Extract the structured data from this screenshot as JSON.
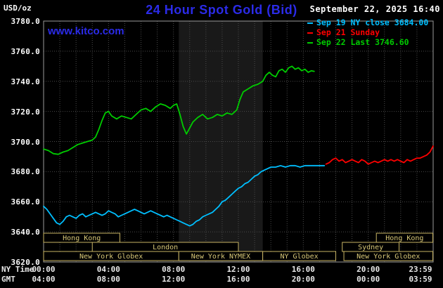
{
  "header": {
    "units": "USD/oz",
    "title": "24 Hour Spot Gold (Bid)",
    "datetime": "September 22, 2025 16:40",
    "watermark": "www.kitco.com"
  },
  "colors": {
    "background": "#000000",
    "title_blue": "#2B2BE8",
    "watermark_blue": "#2B2BE8",
    "axis_text": "#FFFFFF",
    "grid": "#4A4A4A",
    "border": "#9A9A9A",
    "session_box_border": "#C8B464",
    "session_box_text": "#D8C878",
    "session_shade": "#191919",
    "friday_cyan": "#00BFFF",
    "sunday_red": "#FF0000",
    "today_green": "#00CC00"
  },
  "legend": [
    {
      "label": "Sep 19 NY close 3684.00",
      "color": "#00BFFF"
    },
    {
      "label": "Sep 21 Sunday",
      "color": "#FF0000"
    },
    {
      "label": "Sep 22 Last 3746.60",
      "color": "#00CC00"
    }
  ],
  "axes": {
    "y_ticks": [
      "3780.0",
      "3760.0",
      "3740.0",
      "3720.0",
      "3700.0",
      "3680.0",
      "3660.0",
      "3640.0",
      "3620.0"
    ],
    "x_label_ny": "NY Time",
    "x_label_gmt": "GMT",
    "ny_ticks": [
      "00:00",
      "04:00",
      "08:00",
      "12:00",
      "16:00",
      "20:00",
      "23:59"
    ],
    "gmt_ticks": [
      "04:00",
      "08:00",
      "12:00",
      "16:00",
      "20:00",
      "00:00",
      "03:59"
    ]
  },
  "sessions": [
    {
      "label": "Hong Kong",
      "row": 0,
      "start": 0,
      "end": 4.7
    },
    {
      "label": "Hong Kong",
      "row": 0,
      "start": 20.5,
      "end": 23.98
    },
    {
      "label": "London",
      "row": 1,
      "start": 3.0,
      "end": 12.0
    },
    {
      "label": "Sydney",
      "row": 1,
      "start": 18.4,
      "end": 21.9
    },
    {
      "label": "New York Globex",
      "row": 2,
      "start": 0,
      "end": 8.33
    },
    {
      "label": "New York NYMEX",
      "row": 2,
      "start": 8.33,
      "end": 13.5
    },
    {
      "label": "NY Globex",
      "row": 2,
      "start": 13.5,
      "end": 18.0
    },
    {
      "label": "New York Globex",
      "row": 2,
      "start": 18.5,
      "end": 23.98
    }
  ],
  "chart_data": {
    "type": "line",
    "title": "24 Hour Spot Gold (Bid)",
    "ylabel": "USD/oz",
    "xlabel": "NY Time (hours, 00:00-23:59)",
    "xlim": [
      0,
      24
    ],
    "ylim": [
      3620,
      3780
    ],
    "grid": true,
    "legend_position": "top-right",
    "shaded_region": {
      "label": "New York NYMEX floor session",
      "start": 8.33,
      "end": 13.5
    },
    "series": [
      {
        "name": "Sep 19 NY close 3684.00",
        "color": "#00BFFF",
        "points": [
          [
            0,
            3657
          ],
          [
            0.2,
            3655
          ],
          [
            0.4,
            3652
          ],
          [
            0.6,
            3649
          ],
          [
            0.8,
            3646
          ],
          [
            1,
            3645
          ],
          [
            1.2,
            3647
          ],
          [
            1.4,
            3650
          ],
          [
            1.6,
            3651
          ],
          [
            1.8,
            3650
          ],
          [
            2,
            3649
          ],
          [
            2.2,
            3651
          ],
          [
            2.4,
            3652
          ],
          [
            2.6,
            3650
          ],
          [
            2.8,
            3651
          ],
          [
            3,
            3652
          ],
          [
            3.2,
            3653
          ],
          [
            3.4,
            3652
          ],
          [
            3.6,
            3651
          ],
          [
            3.8,
            3652
          ],
          [
            4,
            3654
          ],
          [
            4.2,
            3653
          ],
          [
            4.4,
            3652
          ],
          [
            4.6,
            3650
          ],
          [
            4.8,
            3651
          ],
          [
            5,
            3652
          ],
          [
            5.2,
            3653
          ],
          [
            5.4,
            3654
          ],
          [
            5.6,
            3655
          ],
          [
            5.8,
            3654
          ],
          [
            6,
            3653
          ],
          [
            6.2,
            3652
          ],
          [
            6.4,
            3653
          ],
          [
            6.6,
            3654
          ],
          [
            6.8,
            3653
          ],
          [
            7,
            3652
          ],
          [
            7.2,
            3651
          ],
          [
            7.4,
            3650
          ],
          [
            7.6,
            3651
          ],
          [
            7.8,
            3650
          ],
          [
            8,
            3649
          ],
          [
            8.2,
            3648
          ],
          [
            8.4,
            3647
          ],
          [
            8.6,
            3646
          ],
          [
            8.8,
            3645
          ],
          [
            9,
            3644
          ],
          [
            9.2,
            3645
          ],
          [
            9.4,
            3647
          ],
          [
            9.6,
            3648
          ],
          [
            9.8,
            3650
          ],
          [
            10,
            3651
          ],
          [
            10.2,
            3652
          ],
          [
            10.4,
            3653
          ],
          [
            10.6,
            3655
          ],
          [
            10.8,
            3657
          ],
          [
            11,
            3660
          ],
          [
            11.2,
            3661
          ],
          [
            11.4,
            3663
          ],
          [
            11.6,
            3665
          ],
          [
            11.8,
            3667
          ],
          [
            12,
            3669
          ],
          [
            12.2,
            3670
          ],
          [
            12.4,
            3672
          ],
          [
            12.6,
            3673
          ],
          [
            12.8,
            3675
          ],
          [
            13,
            3677
          ],
          [
            13.2,
            3678
          ],
          [
            13.4,
            3680
          ],
          [
            13.6,
            3681
          ],
          [
            13.8,
            3682
          ],
          [
            14,
            3683
          ],
          [
            14.3,
            3683
          ],
          [
            14.6,
            3684
          ],
          [
            14.9,
            3683
          ],
          [
            15.2,
            3684
          ],
          [
            15.5,
            3684
          ],
          [
            15.8,
            3683
          ],
          [
            16.1,
            3684
          ],
          [
            16.4,
            3684
          ],
          [
            16.7,
            3684
          ],
          [
            17,
            3684
          ],
          [
            17.3,
            3684
          ]
        ]
      },
      {
        "name": "Sep 21 Sunday",
        "color": "#FF0000",
        "points": [
          [
            17.4,
            3685
          ],
          [
            17.6,
            3686
          ],
          [
            17.8,
            3688
          ],
          [
            18,
            3689
          ],
          [
            18.2,
            3687
          ],
          [
            18.4,
            3688
          ],
          [
            18.6,
            3686
          ],
          [
            18.8,
            3687
          ],
          [
            19,
            3688
          ],
          [
            19.2,
            3687
          ],
          [
            19.4,
            3686
          ],
          [
            19.6,
            3688
          ],
          [
            19.8,
            3687
          ],
          [
            20,
            3685
          ],
          [
            20.2,
            3686
          ],
          [
            20.4,
            3687
          ],
          [
            20.6,
            3686
          ],
          [
            20.8,
            3687
          ],
          [
            21,
            3688
          ],
          [
            21.2,
            3687
          ],
          [
            21.4,
            3688
          ],
          [
            21.6,
            3687
          ],
          [
            21.8,
            3688
          ],
          [
            22,
            3687
          ],
          [
            22.2,
            3686
          ],
          [
            22.4,
            3688
          ],
          [
            22.6,
            3687
          ],
          [
            22.8,
            3688
          ],
          [
            23,
            3689
          ],
          [
            23.2,
            3689
          ],
          [
            23.4,
            3690
          ],
          [
            23.6,
            3691
          ],
          [
            23.8,
            3693
          ],
          [
            23.95,
            3696
          ],
          [
            24,
            3697
          ]
        ]
      },
      {
        "name": "Sep 22 Last 3746.60",
        "color": "#00CC00",
        "points": [
          [
            0,
            3695
          ],
          [
            0.3,
            3694
          ],
          [
            0.6,
            3692
          ],
          [
            0.9,
            3691.5
          ],
          [
            1.2,
            3693
          ],
          [
            1.5,
            3694
          ],
          [
            1.8,
            3696
          ],
          [
            2.1,
            3698
          ],
          [
            2.4,
            3699
          ],
          [
            2.7,
            3700
          ],
          [
            3,
            3701
          ],
          [
            3.2,
            3703
          ],
          [
            3.4,
            3708
          ],
          [
            3.6,
            3714
          ],
          [
            3.8,
            3719
          ],
          [
            4,
            3720
          ],
          [
            4.2,
            3717
          ],
          [
            4.5,
            3715
          ],
          [
            4.8,
            3717
          ],
          [
            5.1,
            3716
          ],
          [
            5.4,
            3715
          ],
          [
            5.7,
            3718
          ],
          [
            6,
            3721
          ],
          [
            6.3,
            3722
          ],
          [
            6.6,
            3720
          ],
          [
            6.9,
            3723
          ],
          [
            7.2,
            3725
          ],
          [
            7.5,
            3724
          ],
          [
            7.8,
            3722
          ],
          [
            8,
            3724
          ],
          [
            8.2,
            3725
          ],
          [
            8.4,
            3718
          ],
          [
            8.6,
            3710
          ],
          [
            8.8,
            3705
          ],
          [
            9,
            3709
          ],
          [
            9.2,
            3713
          ],
          [
            9.5,
            3716
          ],
          [
            9.8,
            3718
          ],
          [
            10.1,
            3715
          ],
          [
            10.4,
            3716
          ],
          [
            10.7,
            3718
          ],
          [
            11,
            3717
          ],
          [
            11.3,
            3719
          ],
          [
            11.6,
            3718
          ],
          [
            11.9,
            3721
          ],
          [
            12.1,
            3728
          ],
          [
            12.3,
            3733
          ],
          [
            12.6,
            3735
          ],
          [
            12.9,
            3737
          ],
          [
            13.2,
            3738
          ],
          [
            13.5,
            3740
          ],
          [
            13.7,
            3744
          ],
          [
            13.9,
            3746
          ],
          [
            14.1,
            3744
          ],
          [
            14.3,
            3743
          ],
          [
            14.5,
            3747
          ],
          [
            14.7,
            3748
          ],
          [
            14.9,
            3746
          ],
          [
            15.1,
            3749
          ],
          [
            15.3,
            3750
          ],
          [
            15.5,
            3748
          ],
          [
            15.7,
            3749
          ],
          [
            15.9,
            3747
          ],
          [
            16.1,
            3748
          ],
          [
            16.3,
            3746
          ],
          [
            16.5,
            3747
          ],
          [
            16.67,
            3746.6
          ]
        ]
      }
    ]
  }
}
